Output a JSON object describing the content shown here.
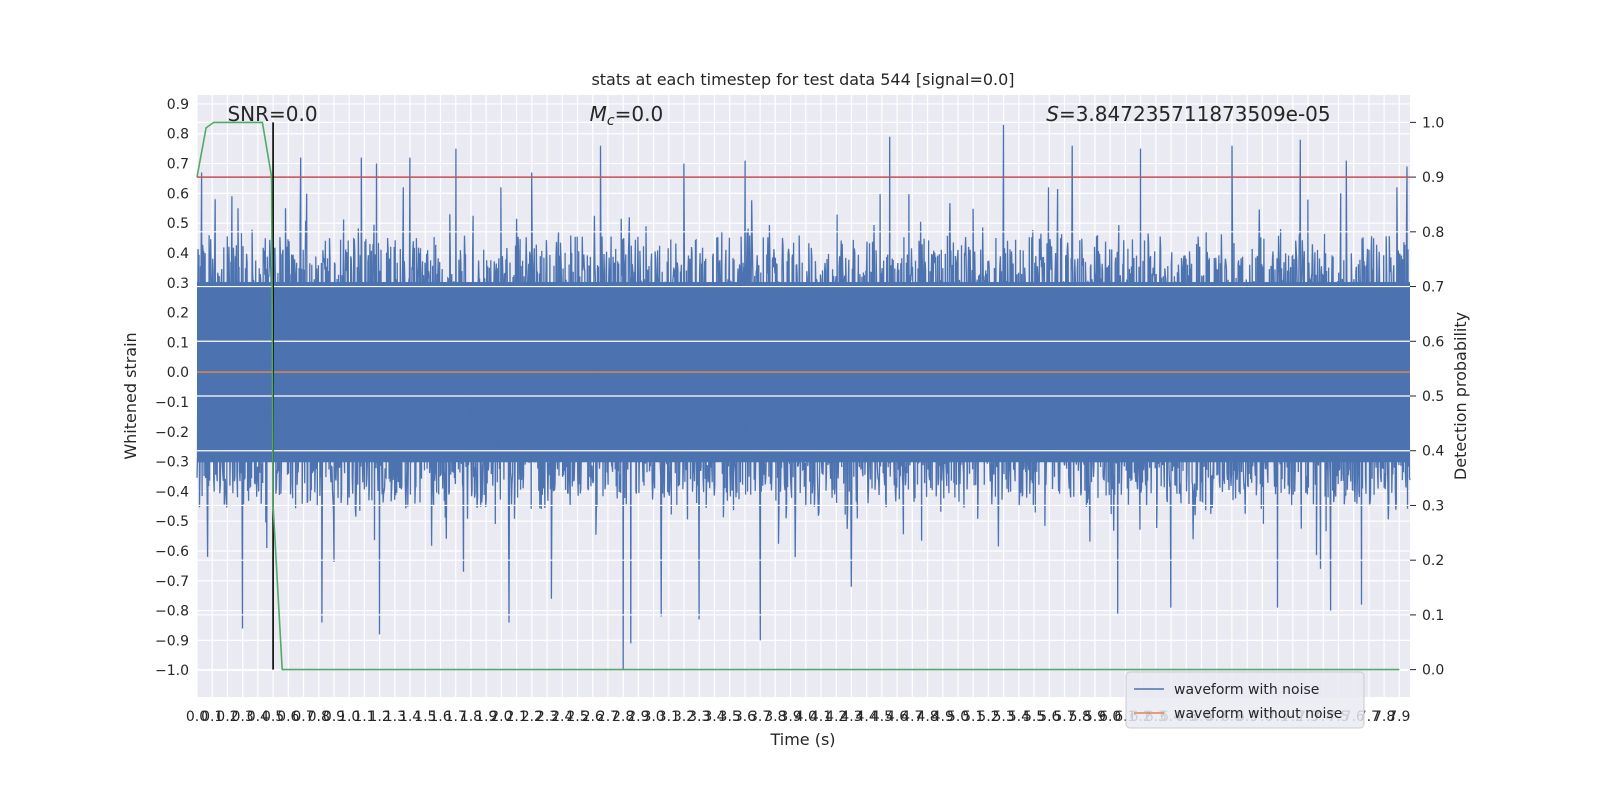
{
  "chart_data": {
    "type": "line",
    "title": "stats at each timestep for test data 544 [signal=0.0]",
    "xlabel": "Time (s)",
    "ylabel": "Whitened strain",
    "y2label": "Detection probability",
    "xlim": [
      0.0,
      7.97
    ],
    "ylim": [
      -1.09,
      0.93
    ],
    "y2lim": [
      -0.05,
      1.05
    ],
    "x_ticks": [
      0.0,
      0.1,
      0.2,
      0.3,
      0.4,
      0.5,
      0.6,
      0.7,
      0.8,
      0.9,
      1.0,
      1.1,
      1.2,
      1.3,
      1.4,
      1.5,
      1.6,
      1.7,
      1.8,
      1.9,
      2.0,
      2.1,
      2.2,
      2.3,
      2.4,
      2.5,
      2.6,
      2.7,
      2.8,
      2.9,
      3.0,
      3.1,
      3.2,
      3.3,
      3.4,
      3.5,
      3.6,
      3.7,
      3.8,
      3.9,
      4.0,
      4.1,
      4.2,
      4.3,
      4.4,
      4.5,
      4.6,
      4.7,
      4.8,
      4.9,
      5.0,
      5.1,
      5.2,
      5.3,
      5.4,
      5.5,
      5.6,
      5.7,
      5.8,
      5.9,
      6.0,
      6.1,
      6.2,
      6.3,
      6.4,
      6.5,
      6.6,
      6.7,
      6.8,
      6.9,
      7.0,
      7.1,
      7.2,
      7.3,
      7.4,
      7.5,
      7.6,
      7.7,
      7.8,
      7.9
    ],
    "x_tick_labels": [
      "0.0",
      "0.1",
      "0.2",
      "0.3",
      "0.4",
      "0.5",
      "0.6",
      "0.7",
      "0.8",
      "0.9",
      "1.0",
      "1.1",
      "1.2",
      "1.3",
      "1.4",
      "1.5",
      "1.6",
      "1.7",
      "1.8",
      "1.9",
      "2.0",
      "2.1",
      "2.2",
      "2.3",
      "2.4",
      "2.5",
      "2.6",
      "2.7",
      "2.8",
      "2.9",
      "3.0",
      "3.1",
      "3.2",
      "3.3",
      "3.4",
      "3.5",
      "3.6",
      "3.7",
      "3.8",
      "3.9",
      "4.0",
      "4.1",
      "4.2",
      "4.3",
      "4.4",
      "4.5",
      "4.6",
      "4.7",
      "4.8",
      "4.9",
      "5.0",
      "5.1",
      "5.2",
      "5.3",
      "5.4",
      "5.5",
      "5.6",
      "5.7",
      "5.8",
      "5.9",
      "6.0",
      "6.1",
      "6.2",
      "6.3",
      "6.4",
      "6.5",
      "6.6",
      "6.7",
      "6.8",
      "6.9",
      "7.0",
      "7.1",
      "7.2",
      "7.3",
      "7.4",
      "7.5",
      "7.6",
      "7.7",
      "7.8",
      "7.9"
    ],
    "y_ticks": [
      0.9,
      0.8,
      0.7,
      0.6,
      0.5,
      0.4,
      0.3,
      0.2,
      0.1,
      0.0,
      -0.1,
      -0.2,
      -0.3,
      -0.4,
      -0.5,
      -0.6,
      -0.7,
      -0.8,
      -0.9,
      -1.0
    ],
    "y_tick_labels": [
      "0.9",
      "0.8",
      "0.7",
      "0.6",
      "0.5",
      "0.4",
      "0.3",
      "0.2",
      "0.1",
      "0.0",
      "−0.1",
      "−0.2",
      "−0.3",
      "−0.4",
      "−0.5",
      "−0.6",
      "−0.7",
      "−0.8",
      "−0.9",
      "−1.0"
    ],
    "y2_ticks": [
      1.0,
      0.9,
      0.8,
      0.7,
      0.6,
      0.5,
      0.4,
      0.3,
      0.2,
      0.1,
      0.0
    ],
    "y2_tick_labels": [
      "1.0",
      "0.9",
      "0.8",
      "0.7",
      "0.6",
      "0.5",
      "0.4",
      "0.3",
      "0.2",
      "0.1",
      "0.0"
    ],
    "series": [
      {
        "name": "waveform with noise",
        "color": "#4c72b0",
        "style": "dense noise trace",
        "x_start": 0.0,
        "x_end": 7.97,
        "band_low": -0.42,
        "band_high": 0.42,
        "peaks_high": [
          [
            0.03,
            0.67
          ],
          [
            0.12,
            0.58
          ],
          [
            0.23,
            0.59
          ],
          [
            0.58,
            0.55
          ],
          [
            0.68,
            0.72
          ],
          [
            0.82,
            0.65
          ],
          [
            1.08,
            0.72
          ],
          [
            1.18,
            0.7
          ],
          [
            1.4,
            0.72
          ],
          [
            1.7,
            0.75
          ],
          [
            2.2,
            0.67
          ],
          [
            2.65,
            0.76
          ],
          [
            2.8,
            0.83
          ],
          [
            3.2,
            0.7
          ],
          [
            3.6,
            0.71
          ],
          [
            4.3,
            0.79
          ],
          [
            4.55,
            0.79
          ],
          [
            5.3,
            0.83
          ],
          [
            5.75,
            0.76
          ],
          [
            6.2,
            0.75
          ],
          [
            6.8,
            0.76
          ],
          [
            7.25,
            0.78
          ],
          [
            7.55,
            0.71
          ],
          [
            7.95,
            0.69
          ]
        ],
        "peaks_low": [
          [
            0.07,
            -0.62
          ],
          [
            0.3,
            -0.86
          ],
          [
            0.46,
            -0.59
          ],
          [
            0.82,
            -0.84
          ],
          [
            1.2,
            -0.88
          ],
          [
            1.75,
            -0.67
          ],
          [
            2.05,
            -0.84
          ],
          [
            2.33,
            -0.76
          ],
          [
            2.8,
            -1.0
          ],
          [
            2.85,
            -0.91
          ],
          [
            3.05,
            -0.82
          ],
          [
            3.3,
            -0.83
          ],
          [
            3.7,
            -0.9
          ],
          [
            4.3,
            -0.72
          ],
          [
            6.05,
            -0.81
          ],
          [
            6.4,
            -0.79
          ],
          [
            7.1,
            -0.79
          ],
          [
            7.45,
            -0.8
          ],
          [
            7.65,
            -0.78
          ]
        ]
      },
      {
        "name": "waveform without noise",
        "color": "#dd8452",
        "x": [
          0.0,
          7.97
        ],
        "y": [
          0.0,
          0.0
        ]
      },
      {
        "name": "",
        "color": "#55a868",
        "axis": "right",
        "x": [
          0.0,
          0.06,
          0.11,
          0.21,
          0.3,
          0.43,
          0.49,
          0.5,
          0.56,
          7.9
        ],
        "y": [
          0.9,
          0.99,
          1.0,
          1.0,
          1.0,
          1.0,
          0.9,
          0.3,
          0.0,
          0.0
        ]
      }
    ],
    "threshold": {
      "y2": 0.9,
      "color": "#c44e52"
    },
    "marker": {
      "x": 0.5,
      "color": "#000000"
    },
    "annotations": [
      {
        "text": "SNR=0.0",
        "x": 0.2
      },
      {
        "text_prefix": "M",
        "text_sub": "c",
        "text_suffix": "=0.0",
        "x": 2.58
      },
      {
        "text_prefix": "S",
        "text_suffix": "=3.847235711873509e-05",
        "x": 5.58
      }
    ],
    "grid": true,
    "legend_position": "lower right"
  }
}
